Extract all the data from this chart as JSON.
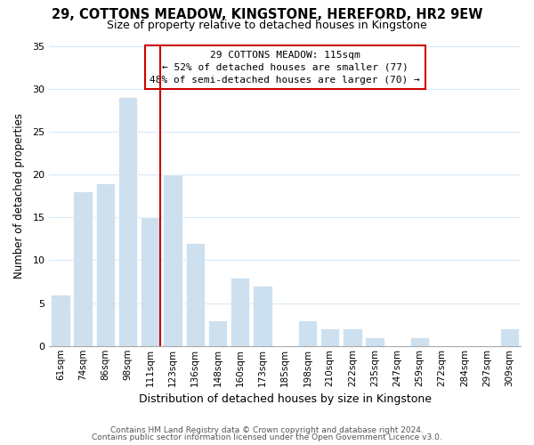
{
  "title": "29, COTTONS MEADOW, KINGSTONE, HEREFORD, HR2 9EW",
  "subtitle": "Size of property relative to detached houses in Kingstone",
  "xlabel": "Distribution of detached houses by size in Kingstone",
  "ylabel": "Number of detached properties",
  "bar_labels": [
    "61sqm",
    "74sqm",
    "86sqm",
    "98sqm",
    "111sqm",
    "123sqm",
    "136sqm",
    "148sqm",
    "160sqm",
    "173sqm",
    "185sqm",
    "198sqm",
    "210sqm",
    "222sqm",
    "235sqm",
    "247sqm",
    "259sqm",
    "272sqm",
    "284sqm",
    "297sqm",
    "309sqm"
  ],
  "bar_values": [
    6,
    18,
    19,
    29,
    15,
    20,
    12,
    3,
    8,
    7,
    0,
    3,
    2,
    2,
    1,
    0,
    1,
    0,
    0,
    0,
    2
  ],
  "bar_color": "#cce0f0",
  "bar_edge_color": "#ffffff",
  "highlight_line_index": 4,
  "highlight_line_color": "#cc0000",
  "ylim": [
    0,
    35
  ],
  "yticks": [
    0,
    5,
    10,
    15,
    20,
    25,
    30,
    35
  ],
  "annotation_title": "29 COTTONS MEADOW: 115sqm",
  "annotation_line1": "← 52% of detached houses are smaller (77)",
  "annotation_line2": "48% of semi-detached houses are larger (70) →",
  "annotation_box_color": "#ffffff",
  "annotation_box_edge": "#cc0000",
  "footer_line1": "Contains HM Land Registry data © Crown copyright and database right 2024.",
  "footer_line2": "Contains public sector information licensed under the Open Government Licence v3.0.",
  "background_color": "#ffffff",
  "grid_color": "#d8e8f4"
}
